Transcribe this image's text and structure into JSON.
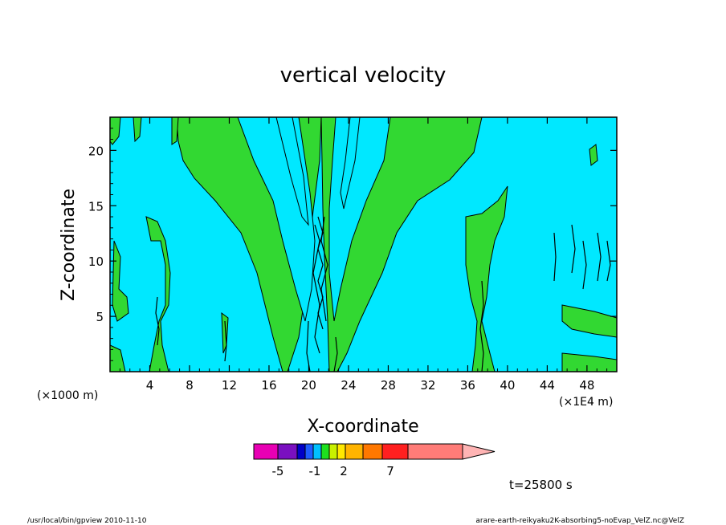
{
  "chart_data": {
    "type": "heatmap",
    "title": "vertical velocity",
    "xlabel": "X-coordinate",
    "ylabel": "Z-coordinate",
    "x_unit_left": "(×1000 m)",
    "x_unit_right": "(×1E4 m)",
    "xlim": [
      0,
      51
    ],
    "ylim": [
      0,
      23
    ],
    "x_ticks": [
      4,
      8,
      12,
      16,
      20,
      24,
      28,
      32,
      36,
      40,
      44,
      48
    ],
    "y_ticks": [
      5,
      10,
      15,
      20
    ],
    "colors": {
      "background_field": "#00e8ff",
      "positive_contour": "#32d832",
      "contour_line": "#000000"
    },
    "colorbar": {
      "colors": [
        "#e800b4",
        "#7a10c0",
        "#0000c8",
        "#1e5cff",
        "#00c0ff",
        "#1ee01e",
        "#c8f000",
        "#ffe800",
        "#ffb400",
        "#ff7800",
        "#ff2020",
        "#ff7c78",
        "#ffb4b4"
      ],
      "tick_labels": [
        "-5",
        "-1",
        "2",
        "7"
      ]
    },
    "time_label": "t=25800 s"
  },
  "footer": {
    "left": "/usr/local/bin/gpview  2010-11-10",
    "right": "arare-earth-reikyaku2K-absorbing5-noEvap_VelZ.nc@VelZ"
  }
}
